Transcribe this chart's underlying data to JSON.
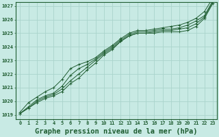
{
  "title": "Graphe pression niveau de la mer (hPa)",
  "bg_color": "#c8eae4",
  "grid_color": "#aad4cc",
  "line_color": "#1e5c30",
  "xlim": [
    -0.5,
    23.5
  ],
  "ylim": [
    1018.7,
    1027.3
  ],
  "yticks": [
    1019,
    1020,
    1021,
    1022,
    1023,
    1024,
    1025,
    1026,
    1027
  ],
  "xticks": [
    0,
    1,
    2,
    3,
    4,
    5,
    6,
    7,
    8,
    9,
    10,
    11,
    12,
    13,
    14,
    15,
    16,
    17,
    18,
    19,
    20,
    21,
    22,
    23
  ],
  "series": [
    [
      1019.1,
      1019.5,
      1019.9,
      1020.2,
      1020.4,
      1020.7,
      1021.3,
      1021.7,
      1022.3,
      1022.8,
      1023.4,
      1023.8,
      1024.4,
      1024.8,
      1025.0,
      1025.0,
      1025.0,
      1025.1,
      1025.1,
      1025.1,
      1025.2,
      1025.5,
      1026.1,
      1027.2
    ],
    [
      1019.1,
      1019.5,
      1020.0,
      1020.3,
      1020.5,
      1020.9,
      1021.5,
      1022.0,
      1022.5,
      1023.0,
      1023.5,
      1023.9,
      1024.4,
      1024.8,
      1025.0,
      1025.0,
      1025.1,
      1025.2,
      1025.2,
      1025.3,
      1025.4,
      1025.7,
      1026.2,
      1027.3
    ],
    [
      1019.1,
      1019.6,
      1020.1,
      1020.4,
      1020.6,
      1021.1,
      1021.9,
      1022.4,
      1022.7,
      1023.1,
      1023.6,
      1024.0,
      1024.5,
      1024.9,
      1025.1,
      1025.1,
      1025.2,
      1025.3,
      1025.3,
      1025.4,
      1025.6,
      1025.9,
      1026.3,
      1027.4
    ],
    [
      1019.2,
      1019.9,
      1020.3,
      1020.7,
      1021.0,
      1021.6,
      1022.4,
      1022.7,
      1022.9,
      1023.2,
      1023.7,
      1024.1,
      1024.6,
      1025.0,
      1025.2,
      1025.2,
      1025.3,
      1025.4,
      1025.5,
      1025.6,
      1025.8,
      1026.1,
      1026.6,
      1027.6
    ]
  ],
  "marker": "+",
  "markersize": 3.5,
  "linewidth": 0.7,
  "title_fontsize": 7.5,
  "tick_fontsize": 5.0
}
